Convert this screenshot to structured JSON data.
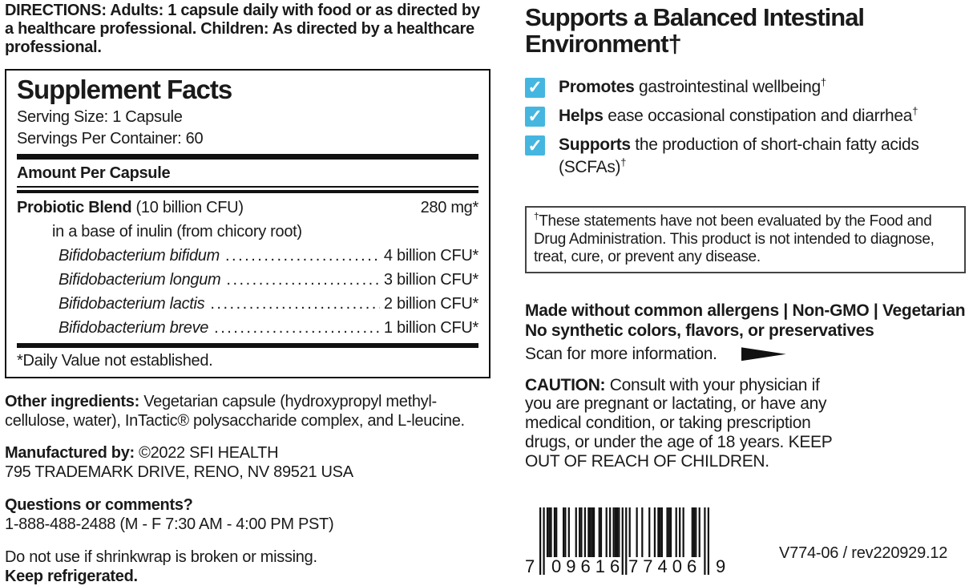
{
  "colors": {
    "check_blue": "#45b6df",
    "text": "#1a1a1a"
  },
  "directions": {
    "text": "DIRECTIONS: Adults: 1 capsule daily with food or as directed by a healthcare professional. Children: As directed by a healthcare professional."
  },
  "supplement_facts": {
    "title": "Supplement Facts",
    "serving_size": "Serving Size: 1 Capsule",
    "servings_per_container": "Servings Per Container: 60",
    "amount_header": "Amount Per Capsule",
    "blend_name": "Probiotic Blend",
    "blend_detail": " (10 billion CFU)",
    "blend_amount": "280 mg*",
    "blend_base": "in a base of inulin (from chicory root)",
    "species": [
      {
        "name": "Bifidobacterium bifidum",
        "amount": "4 billion CFU*"
      },
      {
        "name": "Bifidobacterium longum",
        "amount": "3 billion CFU*"
      },
      {
        "name": "Bifidobacterium lactis",
        "amount": "2 billion CFU*"
      },
      {
        "name": "Bifidobacterium breve",
        "amount": "1 billion CFU*"
      }
    ],
    "footnote": "*Daily Value not established."
  },
  "other_ingredients": {
    "label": "Other ingredients:",
    "text": " Vegetarian capsule (hydroxypropyl methyl-cellulose, water), InTactic® polysaccharide complex, and L-leucine."
  },
  "manufactured": {
    "label": "Manufactured by:",
    "text": " ©2022 SFI HEALTH",
    "address": "795 TRADEMARK DRIVE, RENO, NV 89521 USA"
  },
  "questions": {
    "label": "Questions or comments?",
    "phone": "1-888-488-2488 (M - F 7:30 AM - 4:00 PM PST)"
  },
  "storage": {
    "shrinkwrap": "Do not use if shrinkwrap is broken or missing.",
    "refrigerate": "Keep refrigerated."
  },
  "benefits": {
    "title": "Supports a Balanced Intestinal Environment†",
    "items": [
      {
        "lead": "Promotes",
        "text": " gastrointestinal wellbeing",
        "sup": "†"
      },
      {
        "lead": "Helps",
        "text": " ease occasional constipation and diarrhea",
        "sup": "†"
      },
      {
        "lead": "Supports",
        "text": " the production of short-chain fatty acids (SCFAs)",
        "sup": "†"
      }
    ],
    "check_icon": "✓"
  },
  "disclaimer": {
    "sup": "†",
    "text": "These statements have not been evaluated by the Food and Drug Administration. This product is not intended to diagnose, treat, cure, or prevent any disease."
  },
  "claims": {
    "allergens": "Made without common allergens | Non-GMO | Vegetarian",
    "synthetic": "No synthetic colors, flavors, or preservatives",
    "scan": "Scan for more information."
  },
  "caution": {
    "label": "CAUTION:",
    "text": " Consult with your physician if you are pregnant or lactating, or have any medical condition, or taking prescription drugs, or under the age of 18 years. KEEP OUT OF REACH OF CHILDREN."
  },
  "barcode": {
    "left_digit": "7",
    "group1": "09616",
    "group2": "77406",
    "right_digit": "9"
  },
  "footer": {
    "version": "V774-06 / rev220929.12"
  }
}
